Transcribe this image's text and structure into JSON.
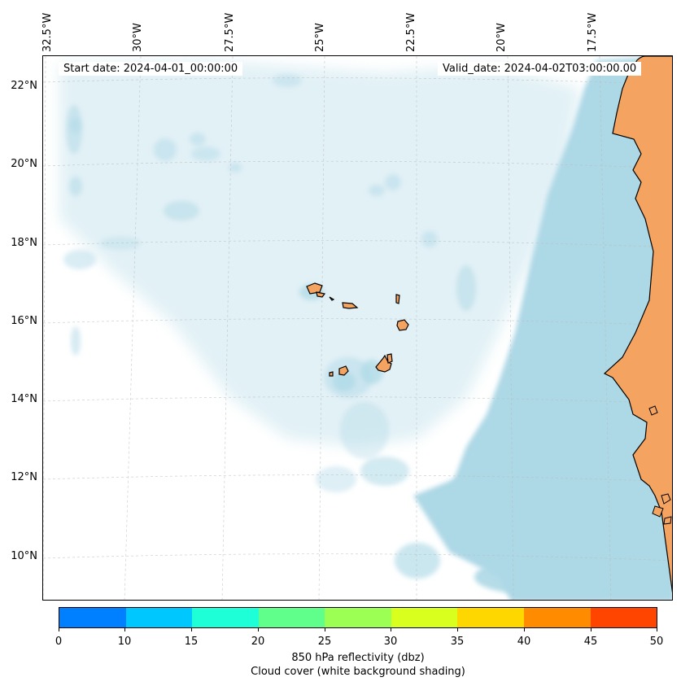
{
  "map": {
    "start_date": "Start date: 2024-04-01_00:00:00",
    "valid_date": "Valid_date: 2024-04-02T03:00:00.00",
    "longitude_labels": [
      "32.5°W",
      "30°W",
      "27.5°W",
      "25°W",
      "22.5°W",
      "20°W",
      "17.5°W"
    ],
    "latitude_labels": [
      "22°N",
      "20°N",
      "18°N",
      "16°N",
      "14°N",
      "12°N",
      "10°N"
    ],
    "colors": {
      "land": "#f4a460",
      "cloud": "#add8e6",
      "coastline": "#000000",
      "gridline": "#bbbbbb"
    }
  },
  "colorbar": {
    "ticks": [
      "0",
      "10",
      "15",
      "20",
      "25",
      "30",
      "35",
      "40",
      "45",
      "50"
    ],
    "colors": [
      "#0080ff",
      "#00c8ff",
      "#1effd8",
      "#60ff8c",
      "#9cff54",
      "#d8ff1e",
      "#ffd700",
      "#ff8c00",
      "#ff4500"
    ],
    "label_line1": "850 hPa reflectivity (dbz)",
    "label_line2": "Cloud cover (white background shading)"
  }
}
